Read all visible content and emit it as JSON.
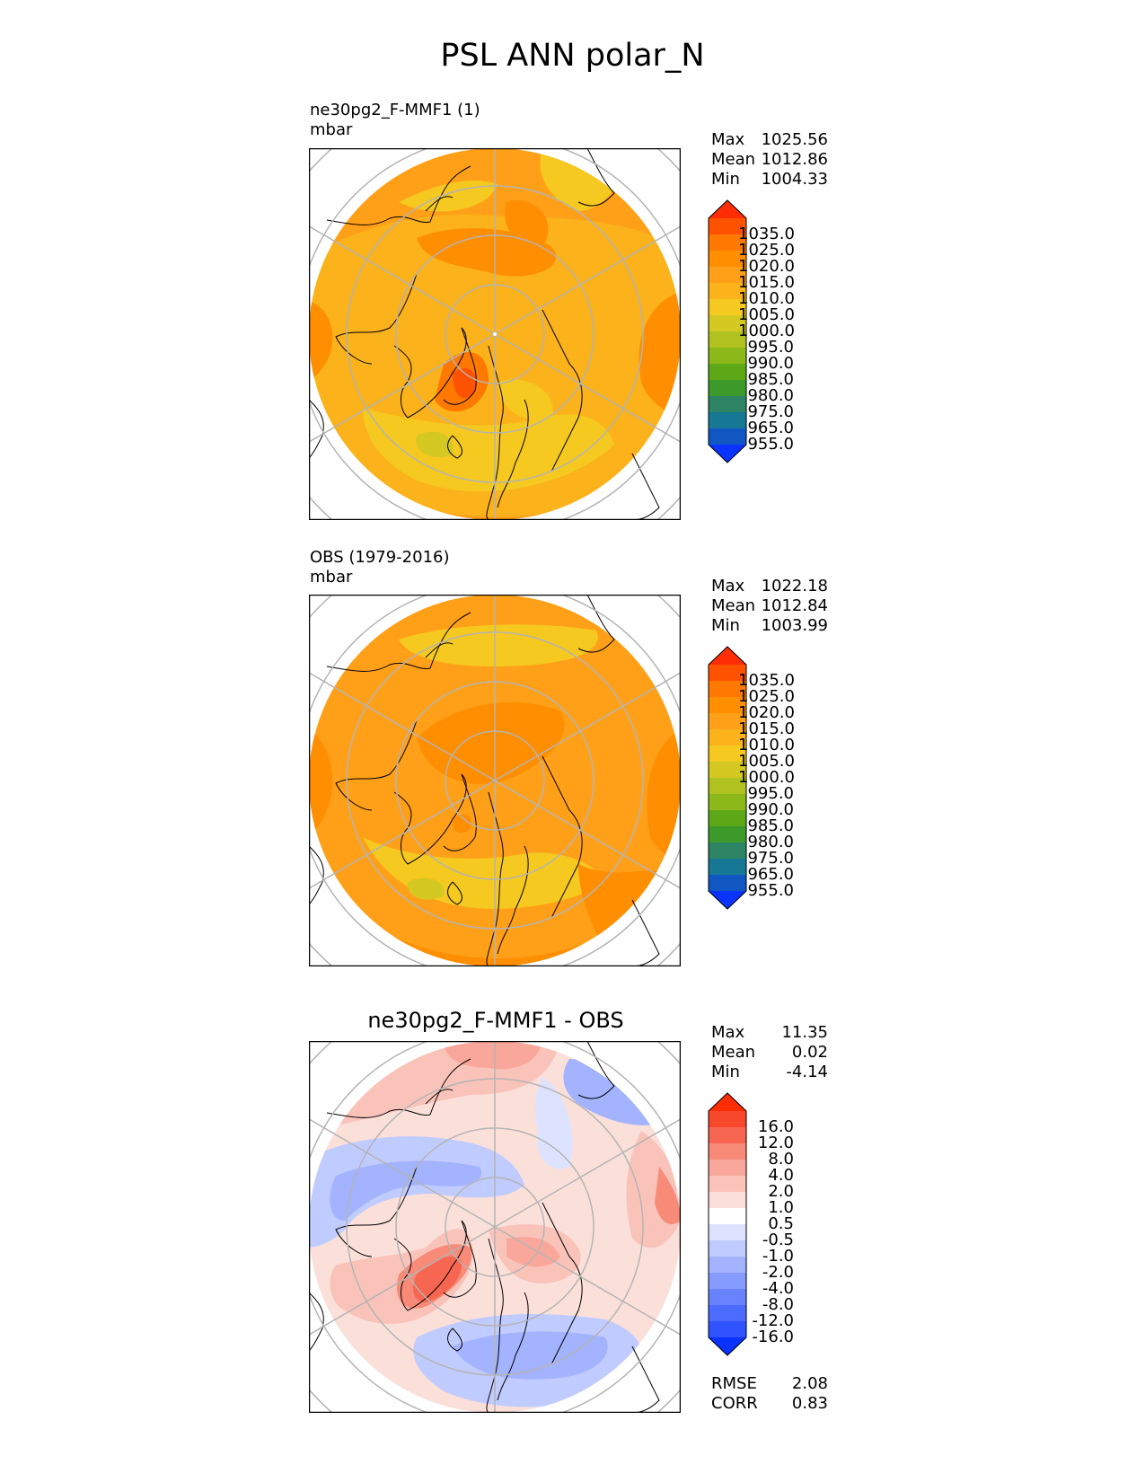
{
  "title": "PSL ANN polar_N",
  "panels": [
    {
      "id": "test",
      "name": "ne30pg2_F-MMF1 (1)",
      "units": "mbar",
      "stats": {
        "max_label": "Max",
        "max": "1025.56",
        "mean_label": "Mean",
        "mean": "1012.86",
        "min_label": "Min",
        "min": "1004.33"
      },
      "colorbar": {
        "labels": [
          "1035.0",
          "1025.0",
          "1020.0",
          "1015.0",
          "1010.0",
          "1005.0",
          "1000.0",
          "995.0",
          "990.0",
          "985.0",
          "980.0",
          "975.0",
          "965.0",
          "955.0"
        ],
        "colors": [
          "#ff2d05",
          "#ff5200",
          "#ff7800",
          "#ff8e00",
          "#ffa018",
          "#fbb21b",
          "#f5c91f",
          "#d4c823",
          "#b0c21f",
          "#8cb81a",
          "#5da817",
          "#3c9a2a",
          "#2e8566",
          "#167895",
          "#1057c2",
          "#0a33ff"
        ]
      }
    },
    {
      "id": "ref",
      "name": "OBS (1979-2016)",
      "units": "mbar",
      "stats": {
        "max_label": "Max",
        "max": "1022.18",
        "mean_label": "Mean",
        "mean": "1012.84",
        "min_label": "Min",
        "min": "1003.99"
      },
      "colorbar": {
        "labels": [
          "1035.0",
          "1025.0",
          "1020.0",
          "1015.0",
          "1010.0",
          "1005.0",
          "1000.0",
          "995.0",
          "990.0",
          "985.0",
          "980.0",
          "975.0",
          "965.0",
          "955.0"
        ],
        "colors": [
          "#ff2d05",
          "#ff5200",
          "#ff7800",
          "#ff8e00",
          "#ffa018",
          "#fbb21b",
          "#f5c91f",
          "#d4c823",
          "#b0c21f",
          "#8cb81a",
          "#5da817",
          "#3c9a2a",
          "#2e8566",
          "#167895",
          "#1057c2",
          "#0a33ff"
        ]
      }
    },
    {
      "id": "diff",
      "name": "ne30pg2_F-MMF1 - OBS",
      "stats": {
        "max_label": "Max",
        "max": "11.35",
        "mean_label": "Mean",
        "mean": "0.02",
        "min_label": "Min",
        "min": "-4.14"
      },
      "colorbar": {
        "labels": [
          "16.0",
          "12.0",
          "8.0",
          "4.0",
          "2.0",
          "1.0",
          "0.5",
          "-0.5",
          "-1.0",
          "-2.0",
          "-4.0",
          "-8.0",
          "-12.0",
          "-16.0"
        ],
        "colors": [
          "#ff2d05",
          "#f7482b",
          "#f76650",
          "#f88a78",
          "#f9a79a",
          "#fac3ba",
          "#fbe0da",
          "#ffffff",
          "#dde3ff",
          "#c0cbff",
          "#a3b3ff",
          "#869bff",
          "#6983ff",
          "#4c6bff",
          "#2f53ff",
          "#0a33ff"
        ]
      },
      "rmse_label": "RMSE",
      "rmse": "2.08",
      "corr_label": "CORR",
      "corr": "0.83"
    }
  ],
  "chart_data": [
    {
      "type": "heatmap",
      "title": "ne30pg2_F-MMF1 (1)",
      "units": "mbar",
      "projection": "north polar stereographic",
      "levels": [
        955,
        965,
        975,
        980,
        985,
        990,
        995,
        1000,
        1005,
        1010,
        1015,
        1020,
        1025,
        1035
      ],
      "max": 1025.56,
      "mean": 1012.86,
      "min": 1004.33
    },
    {
      "type": "heatmap",
      "title": "OBS (1979-2016)",
      "units": "mbar",
      "projection": "north polar stereographic",
      "levels": [
        955,
        965,
        975,
        980,
        985,
        990,
        995,
        1000,
        1005,
        1010,
        1015,
        1020,
        1025,
        1035
      ],
      "max": 1022.18,
      "mean": 1012.84,
      "min": 1003.99
    },
    {
      "type": "heatmap",
      "title": "ne30pg2_F-MMF1 - OBS",
      "projection": "north polar stereographic",
      "levels": [
        -16,
        -12,
        -8,
        -4,
        -2,
        -1,
        -0.5,
        0.5,
        1,
        2,
        4,
        8,
        12,
        16
      ],
      "max": 11.35,
      "mean": 0.02,
      "min": -4.14,
      "rmse": 2.08,
      "corr": 0.83
    }
  ]
}
